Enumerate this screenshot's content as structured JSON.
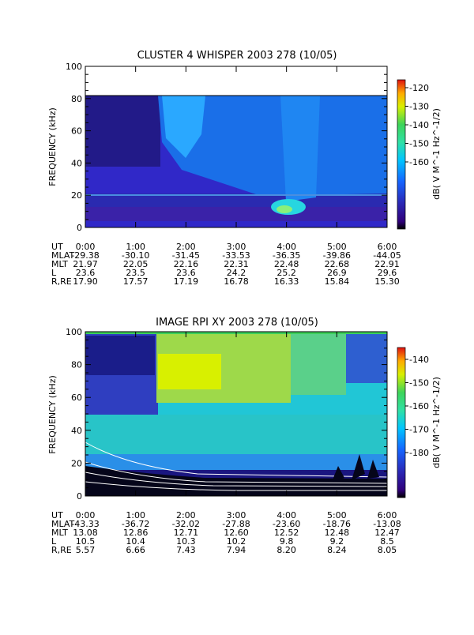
{
  "chart_data": [
    {
      "type": "heatmap",
      "title": "CLUSTER 4 WHISPER 2003 278 (10/05)",
      "ylabel": "FREQUENCY (kHz)",
      "yticks": [
        "0",
        "20",
        "40",
        "60",
        "80",
        "100"
      ],
      "xticks": [
        "0:00",
        "1:00",
        "2:00",
        "3:00",
        "4:00",
        "5:00",
        "6:00"
      ],
      "colorbar": {
        "label": "dB( V M^-1 Hz^-1/2)",
        "ticks": [
          "-120",
          "-130",
          "-140",
          "-150",
          "-160"
        ]
      },
      "ephemeris": [
        {
          "label": "UT",
          "values": [
            "0:00",
            "1:00",
            "2:00",
            "3:00",
            "4:00",
            "5:00",
            "6:00"
          ]
        },
        {
          "label": "MLAT",
          "values": [
            "-29.38",
            "-30.10",
            "-31.45",
            "-33.53",
            "-36.35",
            "-39.86",
            "-44.05"
          ]
        },
        {
          "label": "MLT",
          "values": [
            "21.97",
            "22.05",
            "22.16",
            "22.31",
            "22.48",
            "22.68",
            "22.91"
          ]
        },
        {
          "label": "L",
          "values": [
            "23.6",
            "23.5",
            "23.6",
            "24.2",
            "25.2",
            "26.9",
            "29.6"
          ]
        },
        {
          "label": "R,RE",
          "values": [
            "17.90",
            "17.57",
            "17.19",
            "16.78",
            "16.33",
            "15.84",
            "15.30"
          ]
        }
      ]
    },
    {
      "type": "heatmap",
      "title": "IMAGE RPI XY 2003 278 (10/05)",
      "ylabel": "FREQUENCY (kHz)",
      "yticks": [
        "0",
        "20",
        "40",
        "60",
        "80",
        "100"
      ],
      "xticks": [
        "0:00",
        "1:00",
        "2:00",
        "3:00",
        "4:00",
        "5:00",
        "6:00"
      ],
      "colorbar": {
        "label": "dB( V M^-1 Hz^-1/2)",
        "ticks": [
          "-140",
          "-150",
          "-160",
          "-170",
          "-180"
        ]
      },
      "ephemeris": [
        {
          "label": "UT",
          "values": [
            "0:00",
            "1:00",
            "2:00",
            "3:00",
            "4:00",
            "5:00",
            "6:00"
          ]
        },
        {
          "label": "MLAT",
          "values": [
            "-43.33",
            "-36.72",
            "-32.02",
            "-27.88",
            "-23.60",
            "-18.76",
            "-13.08"
          ]
        },
        {
          "label": "MLT",
          "values": [
            "13.08",
            "12.86",
            "12.71",
            "12.60",
            "12.52",
            "12.48",
            "12.47"
          ]
        },
        {
          "label": "L",
          "values": [
            "10.5",
            "10.4",
            "10.3",
            "10.2",
            "9.8",
            "9.2",
            "8.5"
          ]
        },
        {
          "label": "R,RE",
          "values": [
            "5.57",
            "6.66",
            "7.43",
            "7.94",
            "8.20",
            "8.24",
            "8.05"
          ]
        }
      ]
    }
  ]
}
